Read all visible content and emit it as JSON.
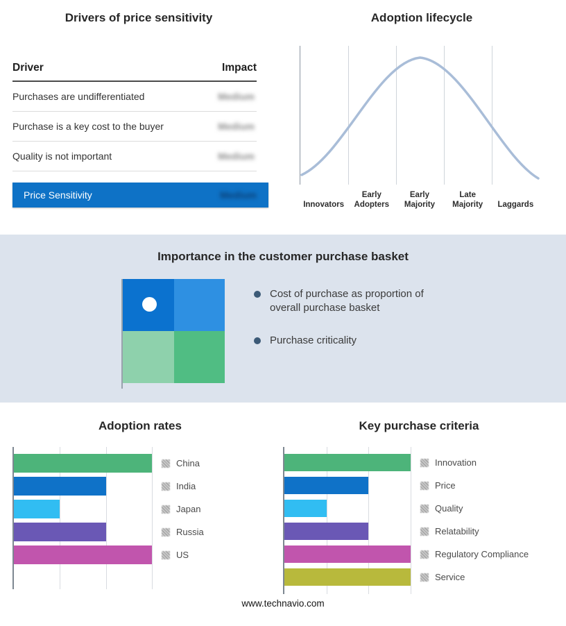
{
  "drivers": {
    "title": "Drivers of price sensitivity",
    "columns": {
      "driver": "Driver",
      "impact": "Impact"
    },
    "rows": [
      {
        "driver": "Purchases are undifferentiated",
        "impact": "Medium"
      },
      {
        "driver": "Purchase is a key cost to the buyer",
        "impact": "Medium"
      },
      {
        "driver": "Quality is not important",
        "impact": "Medium"
      }
    ],
    "highlight": {
      "driver": "Price Sensitivity",
      "impact": "Medium",
      "bg": "#0e72c6"
    }
  },
  "basket": {
    "title": "Importance in the customer purchase basket",
    "band_bg": "#dce3ed",
    "bullets": [
      "Cost of purchase as proportion of overall purchase basket",
      "Purchase criticality"
    ],
    "quadrants": {
      "top_left": "#0b72cf",
      "top_right": "#2e90e2",
      "bottom_left": "#8ed1ac",
      "bottom_right": "#50bd83"
    }
  },
  "footer": {
    "url": "www.technavio.com"
  },
  "chart_data": [
    {
      "type": "line",
      "title": "Adoption lifecycle",
      "categories": [
        "Innovators",
        "Early Adopters",
        "Early Majority",
        "Late Majority",
        "Laggards"
      ],
      "y_normalized": [
        0.15,
        0.6,
        1.0,
        0.6,
        0.15
      ],
      "color": "#a9bdd8",
      "grid": true,
      "description": "Bell-shaped adoption curve across five adopter segments"
    },
    {
      "type": "bar",
      "title": "Adoption rates",
      "orientation": "horizontal",
      "categories": [
        "China",
        "India",
        "Japan",
        "Russia",
        "US"
      ],
      "values": [
        3,
        2,
        1,
        2,
        3
      ],
      "xlim": [
        0,
        3
      ],
      "colors": [
        "#4db47a",
        "#0f72c8",
        "#31bdf2",
        "#6a58b5",
        "#c155ad"
      ],
      "grid": true,
      "legend_position": "right"
    },
    {
      "type": "bar",
      "title": "Key purchase criteria",
      "orientation": "horizontal",
      "categories": [
        "Innovation",
        "Price",
        "Quality",
        "Relatability",
        "Regulatory Compliance",
        "Service"
      ],
      "values": [
        3,
        2,
        1,
        2,
        3,
        3
      ],
      "xlim": [
        0,
        3
      ],
      "colors": [
        "#4db47a",
        "#0f72c8",
        "#31bdf2",
        "#6a58b5",
        "#c155ad",
        "#b8b93c"
      ],
      "grid": true,
      "legend_position": "right"
    }
  ]
}
